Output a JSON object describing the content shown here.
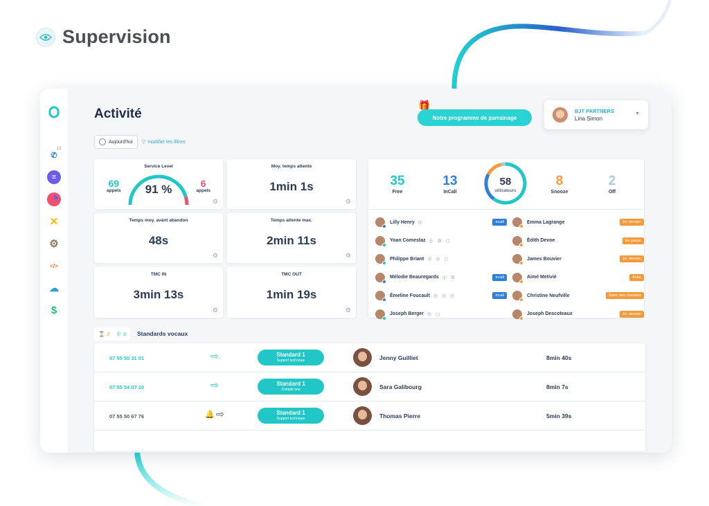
{
  "brand": {
    "title": "Supervision",
    "icon": "eye-icon"
  },
  "header": {
    "title": "Activité",
    "promo_label": "Notre programme de parrainage",
    "account": {
      "company": "BJT PARTNERS",
      "user": "Lina Simon"
    }
  },
  "sidebar": {
    "calls_badge": "12",
    "items": [
      {
        "icon": "phone-icon"
      },
      {
        "icon": "list-icon"
      },
      {
        "icon": "pie-chart-icon"
      },
      {
        "icon": "crossed-tools-icon"
      },
      {
        "icon": "gear-icon"
      },
      {
        "icon": "code-icon"
      },
      {
        "icon": "cloud-icon"
      },
      {
        "icon": "dollar-icon"
      }
    ]
  },
  "filters": {
    "period": "Aujourd'hui",
    "modify": "modifier les filtres"
  },
  "kpis": {
    "service_level": {
      "label": "Service Level",
      "percent": "91 %",
      "percent_value": 91,
      "left_count": "69",
      "left_unit": "appels",
      "right_count": "6",
      "right_unit": "appels"
    },
    "wait_avg": {
      "label": "Moy. temps attente",
      "value": "1min 1s"
    },
    "wait_before_abandon": {
      "label": "Temps moy. avant abandon",
      "value": "48s"
    },
    "wait_max": {
      "label": "Temps attente max.",
      "value": "2min 11s"
    },
    "tmc_in": {
      "label": "TMC IN",
      "value": "3min 13s"
    },
    "tmc_out": {
      "label": "TMC OUT",
      "value": "1min 19s"
    }
  },
  "users": {
    "free": {
      "count": "35",
      "label": "Free",
      "color": "#21c7c7"
    },
    "incall": {
      "count": "13",
      "label": "InCall",
      "color": "#2f7fd8"
    },
    "total": {
      "count": "58",
      "label": "utilisateurs"
    },
    "snooze": {
      "count": "8",
      "label": "Snooze",
      "color": "#f59a3a"
    },
    "off": {
      "count": "2",
      "label": "Off",
      "color": "#a9c9dc"
    },
    "left_list": [
      {
        "name": "Lilly Henry",
        "icons": "◎",
        "badge": "incall",
        "status": "#2f7fd8"
      },
      {
        "name": "Yoan Comestaz",
        "icons": "◎ ⚙ ◻",
        "badge": "",
        "status": "#21c7c7"
      },
      {
        "name": "Philippe Briant",
        "icons": "◎ ◎ ◻",
        "badge": "",
        "status": "#21c7c7"
      },
      {
        "name": "Mélodie Beauregards",
        "icons": "◎ ⚙",
        "badge": "incall",
        "status": "#2f7fd8"
      },
      {
        "name": "Émeline Foucault",
        "icons": "◎ ◎ ◎",
        "badge": "incall",
        "status": "#2f7fd8"
      },
      {
        "name": "Joseph Berger",
        "icons": "◎ ◻",
        "badge": "",
        "status": "#21c7c7"
      }
    ],
    "right_list": [
      {
        "name": "Emma Lagrange",
        "badge": "En réunion",
        "status": "#f59a3a"
      },
      {
        "name": "Édith Devoe",
        "badge": "En pause",
        "status": "#f59a3a"
      },
      {
        "name": "James Bouvier",
        "badge": "En réunion",
        "status": "#f59a3a"
      },
      {
        "name": "Aimé Metivié",
        "badge": "Autre",
        "status": "#f59a3a"
      },
      {
        "name": "Christine Neufville",
        "badge": "Dans mes dossiers",
        "status": "#f59a3a"
      },
      {
        "name": "Joseph Descoteaux",
        "badge": "En réunion",
        "status": "#f59a3a"
      }
    ]
  },
  "standards": {
    "title": "Standards vocaux",
    "waiting_count": "2",
    "calls_count": "3",
    "rows": [
      {
        "number": "07 55 50 31 01",
        "pill": "Standard 1",
        "sub": "Support technique",
        "agent": "Jenny Guilliet",
        "duration": "8min 40s",
        "number_color": "#21c7c7",
        "bell": false
      },
      {
        "number": "07 55 54 07 10",
        "pill": "Standard 1",
        "sub": "Compte test",
        "agent": "Sara Galibourg",
        "duration": "8min 7s",
        "number_color": "#21c7c7",
        "bell": false
      },
      {
        "number": "07 55 50 67 76",
        "pill": "Standard 1",
        "sub": "Support technique",
        "agent": "Thomas Pierre",
        "duration": "5min 39s",
        "number_color": "#4a5568",
        "bell": true
      }
    ]
  }
}
